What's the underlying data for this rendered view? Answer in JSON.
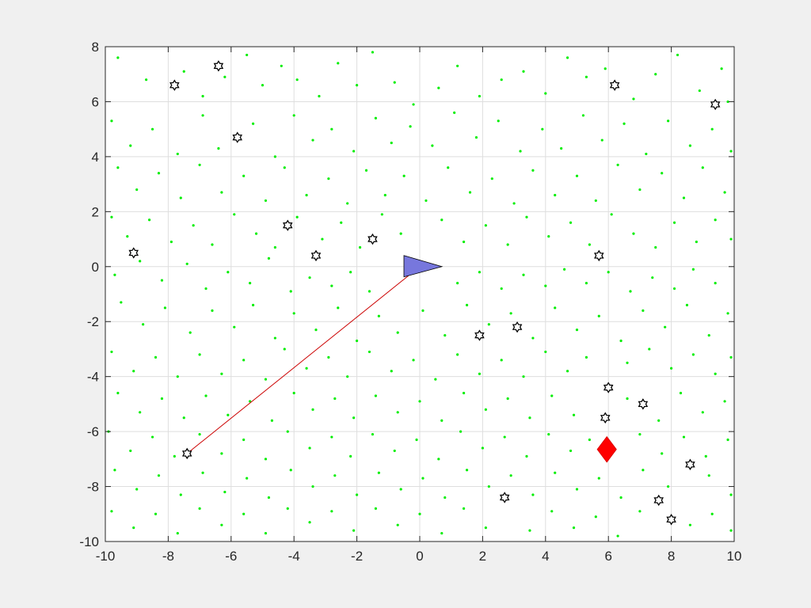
{
  "figure": {
    "background": "#f0f0f0",
    "axes_background": "#ffffff"
  },
  "chart_data": {
    "type": "scatter",
    "title": "",
    "xlabel": "",
    "ylabel": "",
    "xlim": [
      -10,
      10
    ],
    "ylim": [
      -10,
      8
    ],
    "xticks": [
      -10,
      -8,
      -6,
      -4,
      -2,
      0,
      2,
      4,
      6,
      8,
      10
    ],
    "yticks": [
      -10,
      -8,
      -6,
      -4,
      -2,
      0,
      2,
      4,
      6,
      8
    ],
    "grid": true,
    "legend": null,
    "colors": {
      "points": "#00ee00",
      "markers": "#000000",
      "path": "#cc0000",
      "robot_fill": "#7777dd",
      "target": "#ff0000"
    },
    "series": [
      {
        "marker": "hexagram",
        "points": [
          [
            -7.8,
            6.6
          ],
          [
            -6.4,
            7.3
          ],
          [
            -5.8,
            4.7
          ],
          [
            -9.1,
            0.5
          ],
          [
            -4.2,
            1.5
          ],
          [
            -3.3,
            0.4
          ],
          [
            -1.5,
            1.0
          ],
          [
            -7.4,
            -6.8
          ],
          [
            1.9,
            -2.5
          ],
          [
            3.1,
            -2.2
          ],
          [
            5.7,
            0.4
          ],
          [
            6.2,
            6.6
          ],
          [
            9.4,
            5.9
          ],
          [
            6.0,
            -4.4
          ],
          [
            7.1,
            -5.0
          ],
          [
            5.9,
            -5.5
          ],
          [
            8.6,
            -7.2
          ],
          [
            2.7,
            -8.4
          ],
          [
            7.6,
            -8.5
          ],
          [
            8.0,
            -9.2
          ]
        ]
      },
      {
        "marker": "path-line",
        "points": [
          [
            -7.4,
            -6.8
          ],
          [
            0,
            0
          ]
        ]
      },
      {
        "marker": "triangle",
        "points": [
          [
            0,
            0
          ]
        ],
        "heading_deg": 0
      },
      {
        "marker": "diamond",
        "points": [
          [
            5.95,
            -6.65
          ]
        ]
      }
    ],
    "scatter_points": [
      [
        -9.6,
        7.6
      ],
      [
        -8.7,
        6.8
      ],
      [
        -7.5,
        7.1
      ],
      [
        -6.9,
        6.2
      ],
      [
        -6.2,
        6.9
      ],
      [
        -5.5,
        7.7
      ],
      [
        -5.0,
        6.6
      ],
      [
        -4.4,
        7.3
      ],
      [
        -3.9,
        6.8
      ],
      [
        -3.2,
        6.2
      ],
      [
        -2.6,
        7.4
      ],
      [
        -2.0,
        6.6
      ],
      [
        -1.5,
        7.8
      ],
      [
        -0.8,
        6.7
      ],
      [
        -0.2,
        5.9
      ],
      [
        0.6,
        6.5
      ],
      [
        1.2,
        7.3
      ],
      [
        1.9,
        6.2
      ],
      [
        2.6,
        6.8
      ],
      [
        3.3,
        7.1
      ],
      [
        4.0,
        6.3
      ],
      [
        4.7,
        7.6
      ],
      [
        5.3,
        6.9
      ],
      [
        5.9,
        7.2
      ],
      [
        6.8,
        6.1
      ],
      [
        7.5,
        7.0
      ],
      [
        8.2,
        7.7
      ],
      [
        8.9,
        6.4
      ],
      [
        9.6,
        7.2
      ],
      [
        9.8,
        6.0
      ],
      [
        -9.8,
        5.3
      ],
      [
        -9.2,
        4.4
      ],
      [
        -8.5,
        5.0
      ],
      [
        -7.7,
        4.1
      ],
      [
        -6.9,
        5.5
      ],
      [
        -6.4,
        4.3
      ],
      [
        -5.3,
        5.2
      ],
      [
        -4.6,
        4.0
      ],
      [
        -4.0,
        5.5
      ],
      [
        -3.4,
        4.6
      ],
      [
        -2.8,
        5.0
      ],
      [
        -2.1,
        4.2
      ],
      [
        -1.4,
        5.4
      ],
      [
        -0.9,
        4.5
      ],
      [
        -0.3,
        5.1
      ],
      [
        0.4,
        4.4
      ],
      [
        1.1,
        5.6
      ],
      [
        1.8,
        4.7
      ],
      [
        2.5,
        5.3
      ],
      [
        3.2,
        4.2
      ],
      [
        3.9,
        5.0
      ],
      [
        4.5,
        4.3
      ],
      [
        5.2,
        5.5
      ],
      [
        5.8,
        4.6
      ],
      [
        6.5,
        5.2
      ],
      [
        7.2,
        4.1
      ],
      [
        7.9,
        5.3
      ],
      [
        8.6,
        4.4
      ],
      [
        9.3,
        5.0
      ],
      [
        9.9,
        4.2
      ],
      [
        -9.6,
        3.6
      ],
      [
        -9.0,
        2.8
      ],
      [
        -8.3,
        3.4
      ],
      [
        -7.6,
        2.5
      ],
      [
        -7.0,
        3.7
      ],
      [
        -6.3,
        2.7
      ],
      [
        -5.6,
        3.3
      ],
      [
        -4.9,
        2.4
      ],
      [
        -4.3,
        3.6
      ],
      [
        -3.6,
        2.6
      ],
      [
        -2.9,
        3.2
      ],
      [
        -2.3,
        2.3
      ],
      [
        -1.7,
        3.5
      ],
      [
        -1.1,
        2.6
      ],
      [
        -0.5,
        3.3
      ],
      [
        0.2,
        2.4
      ],
      [
        0.9,
        3.6
      ],
      [
        1.6,
        2.7
      ],
      [
        2.3,
        3.2
      ],
      [
        3.0,
        2.3
      ],
      [
        3.6,
        3.5
      ],
      [
        4.3,
        2.6
      ],
      [
        5.0,
        3.3
      ],
      [
        5.6,
        2.4
      ],
      [
        6.3,
        3.7
      ],
      [
        7.0,
        2.8
      ],
      [
        7.7,
        3.4
      ],
      [
        8.4,
        2.5
      ],
      [
        9.0,
        3.6
      ],
      [
        9.7,
        2.7
      ],
      [
        -9.8,
        1.8
      ],
      [
        -9.3,
        1.1
      ],
      [
        -8.6,
        1.7
      ],
      [
        -7.9,
        0.9
      ],
      [
        -7.2,
        1.5
      ],
      [
        -6.6,
        0.8
      ],
      [
        -5.9,
        1.9
      ],
      [
        -5.2,
        1.2
      ],
      [
        -4.6,
        0.7
      ],
      [
        -3.9,
        1.8
      ],
      [
        -3.1,
        1.0
      ],
      [
        -2.5,
        1.6
      ],
      [
        -1.9,
        0.7
      ],
      [
        -1.2,
        1.9
      ],
      [
        -0.6,
        1.2
      ],
      [
        0.7,
        1.7
      ],
      [
        1.4,
        0.9
      ],
      [
        2.1,
        1.5
      ],
      [
        2.8,
        0.8
      ],
      [
        3.4,
        1.8
      ],
      [
        4.1,
        1.1
      ],
      [
        4.8,
        1.6
      ],
      [
        5.4,
        0.8
      ],
      [
        6.1,
        1.9
      ],
      [
        6.8,
        1.2
      ],
      [
        7.5,
        0.7
      ],
      [
        8.1,
        1.6
      ],
      [
        8.8,
        0.9
      ],
      [
        9.4,
        1.7
      ],
      [
        9.9,
        1.0
      ],
      [
        -9.7,
        -0.3
      ],
      [
        -8.9,
        0.2
      ],
      [
        -8.2,
        -0.5
      ],
      [
        -7.4,
        0.1
      ],
      [
        -6.8,
        -0.8
      ],
      [
        -6.1,
        -0.2
      ],
      [
        -5.4,
        -0.6
      ],
      [
        -4.8,
        0.3
      ],
      [
        -4.1,
        -0.9
      ],
      [
        -3.5,
        -0.4
      ],
      [
        -2.8,
        -0.7
      ],
      [
        -2.2,
        -0.2
      ],
      [
        -1.6,
        -0.9
      ],
      [
        1.2,
        -0.6
      ],
      [
        1.9,
        -0.2
      ],
      [
        2.6,
        -0.8
      ],
      [
        3.3,
        -0.3
      ],
      [
        4.0,
        -0.7
      ],
      [
        4.6,
        -0.1
      ],
      [
        5.3,
        -0.6
      ],
      [
        6.0,
        -0.2
      ],
      [
        6.7,
        -0.9
      ],
      [
        7.4,
        -0.4
      ],
      [
        8.1,
        -0.8
      ],
      [
        8.7,
        -0.1
      ],
      [
        9.4,
        -0.6
      ],
      [
        -9.5,
        -1.3
      ],
      [
        -8.8,
        -2.1
      ],
      [
        -8.1,
        -1.5
      ],
      [
        -7.3,
        -2.4
      ],
      [
        -6.6,
        -1.6
      ],
      [
        -5.9,
        -2.2
      ],
      [
        -5.3,
        -1.4
      ],
      [
        -4.6,
        -2.6
      ],
      [
        -4.0,
        -1.7
      ],
      [
        -3.3,
        -2.3
      ],
      [
        -2.6,
        -1.5
      ],
      [
        -2.0,
        -2.7
      ],
      [
        -1.3,
        -1.8
      ],
      [
        -0.7,
        -2.4
      ],
      [
        0.1,
        -1.6
      ],
      [
        0.8,
        -2.5
      ],
      [
        1.5,
        -1.4
      ],
      [
        2.2,
        -2.1
      ],
      [
        2.9,
        -1.7
      ],
      [
        3.6,
        -2.6
      ],
      [
        4.3,
        -1.5
      ],
      [
        5.0,
        -2.3
      ],
      [
        5.7,
        -1.8
      ],
      [
        6.4,
        -2.7
      ],
      [
        7.1,
        -1.6
      ],
      [
        7.8,
        -2.2
      ],
      [
        8.5,
        -1.4
      ],
      [
        9.2,
        -2.5
      ],
      [
        9.8,
        -1.7
      ],
      [
        -9.8,
        -3.1
      ],
      [
        -9.1,
        -3.8
      ],
      [
        -8.4,
        -3.3
      ],
      [
        -7.7,
        -4.0
      ],
      [
        -7.0,
        -3.2
      ],
      [
        -6.3,
        -3.9
      ],
      [
        -5.6,
        -3.4
      ],
      [
        -4.9,
        -4.1
      ],
      [
        -4.3,
        -3.0
      ],
      [
        -3.6,
        -3.7
      ],
      [
        -2.9,
        -3.3
      ],
      [
        -2.3,
        -4.0
      ],
      [
        -1.6,
        -3.1
      ],
      [
        -0.9,
        -3.8
      ],
      [
        -0.2,
        -3.4
      ],
      [
        0.5,
        -4.1
      ],
      [
        1.2,
        -3.2
      ],
      [
        1.9,
        -3.9
      ],
      [
        2.6,
        -3.4
      ],
      [
        3.3,
        -4.0
      ],
      [
        4.0,
        -3.1
      ],
      [
        4.7,
        -3.8
      ],
      [
        5.3,
        -3.3
      ],
      [
        6.6,
        -3.5
      ],
      [
        7.3,
        -3.0
      ],
      [
        8.0,
        -3.7
      ],
      [
        8.7,
        -3.2
      ],
      [
        9.4,
        -3.9
      ],
      [
        9.9,
        -3.3
      ],
      [
        -9.6,
        -4.6
      ],
      [
        -8.9,
        -5.3
      ],
      [
        -8.2,
        -4.8
      ],
      [
        -7.5,
        -5.5
      ],
      [
        -6.8,
        -4.7
      ],
      [
        -6.1,
        -5.4
      ],
      [
        -5.4,
        -4.9
      ],
      [
        -4.7,
        -5.6
      ],
      [
        -4.0,
        -4.6
      ],
      [
        -3.4,
        -5.2
      ],
      [
        -2.7,
        -4.8
      ],
      [
        -2.1,
        -5.5
      ],
      [
        -1.4,
        -4.7
      ],
      [
        -0.7,
        -5.3
      ],
      [
        0.0,
        -4.9
      ],
      [
        0.7,
        -5.6
      ],
      [
        1.4,
        -4.6
      ],
      [
        2.1,
        -5.2
      ],
      [
        2.8,
        -4.8
      ],
      [
        3.5,
        -5.5
      ],
      [
        4.2,
        -4.7
      ],
      [
        4.9,
        -5.4
      ],
      [
        6.6,
        -4.8
      ],
      [
        7.6,
        -5.6
      ],
      [
        8.3,
        -4.6
      ],
      [
        9.0,
        -5.3
      ],
      [
        9.7,
        -4.9
      ],
      [
        -9.9,
        -6.0
      ],
      [
        -9.2,
        -6.7
      ],
      [
        -8.5,
        -6.2
      ],
      [
        -7.8,
        -6.9
      ],
      [
        -7.0,
        -6.1
      ],
      [
        -6.3,
        -6.8
      ],
      [
        -5.6,
        -6.3
      ],
      [
        -4.9,
        -7.0
      ],
      [
        -4.2,
        -6.0
      ],
      [
        -3.5,
        -6.6
      ],
      [
        -2.8,
        -6.2
      ],
      [
        -2.2,
        -6.9
      ],
      [
        -1.5,
        -6.1
      ],
      [
        -0.8,
        -6.7
      ],
      [
        -0.1,
        -6.3
      ],
      [
        0.6,
        -7.0
      ],
      [
        1.3,
        -6.0
      ],
      [
        2.0,
        -6.6
      ],
      [
        2.7,
        -6.2
      ],
      [
        3.4,
        -6.9
      ],
      [
        4.1,
        -6.1
      ],
      [
        4.8,
        -6.7
      ],
      [
        5.4,
        -6.3
      ],
      [
        7.0,
        -6.1
      ],
      [
        7.7,
        -6.8
      ],
      [
        8.4,
        -6.2
      ],
      [
        9.1,
        -6.9
      ],
      [
        9.8,
        -6.3
      ],
      [
        -9.7,
        -7.4
      ],
      [
        -9.0,
        -8.1
      ],
      [
        -8.3,
        -7.6
      ],
      [
        -7.6,
        -8.3
      ],
      [
        -6.9,
        -7.5
      ],
      [
        -6.2,
        -8.2
      ],
      [
        -5.5,
        -7.7
      ],
      [
        -4.8,
        -8.4
      ],
      [
        -4.1,
        -7.4
      ],
      [
        -3.4,
        -8.0
      ],
      [
        -2.7,
        -7.6
      ],
      [
        -2.0,
        -8.3
      ],
      [
        -1.3,
        -7.5
      ],
      [
        -0.6,
        -8.1
      ],
      [
        0.1,
        -7.7
      ],
      [
        0.8,
        -8.4
      ],
      [
        1.5,
        -7.4
      ],
      [
        2.2,
        -8.0
      ],
      [
        2.9,
        -7.6
      ],
      [
        3.6,
        -8.3
      ],
      [
        4.3,
        -7.5
      ],
      [
        5.0,
        -8.1
      ],
      [
        5.7,
        -7.7
      ],
      [
        6.4,
        -8.4
      ],
      [
        7.1,
        -7.4
      ],
      [
        7.9,
        -8.0
      ],
      [
        9.2,
        -7.6
      ],
      [
        9.9,
        -8.3
      ],
      [
        -9.8,
        -8.9
      ],
      [
        -9.1,
        -9.5
      ],
      [
        -8.4,
        -9.0
      ],
      [
        -7.7,
        -9.7
      ],
      [
        -7.0,
        -8.8
      ],
      [
        -6.3,
        -9.4
      ],
      [
        -5.6,
        -9.0
      ],
      [
        -4.9,
        -9.7
      ],
      [
        -4.2,
        -8.8
      ],
      [
        -3.5,
        -9.3
      ],
      [
        -2.8,
        -8.9
      ],
      [
        -2.1,
        -9.6
      ],
      [
        -1.4,
        -8.8
      ],
      [
        -0.7,
        -9.4
      ],
      [
        0.0,
        -9.0
      ],
      [
        0.7,
        -9.7
      ],
      [
        1.4,
        -8.8
      ],
      [
        2.1,
        -9.5
      ],
      [
        3.5,
        -9.6
      ],
      [
        4.2,
        -8.9
      ],
      [
        4.9,
        -9.5
      ],
      [
        5.6,
        -9.1
      ],
      [
        6.3,
        -9.8
      ],
      [
        7.0,
        -8.9
      ],
      [
        8.6,
        -9.4
      ],
      [
        9.3,
        -9.0
      ],
      [
        9.9,
        -9.6
      ]
    ]
  }
}
